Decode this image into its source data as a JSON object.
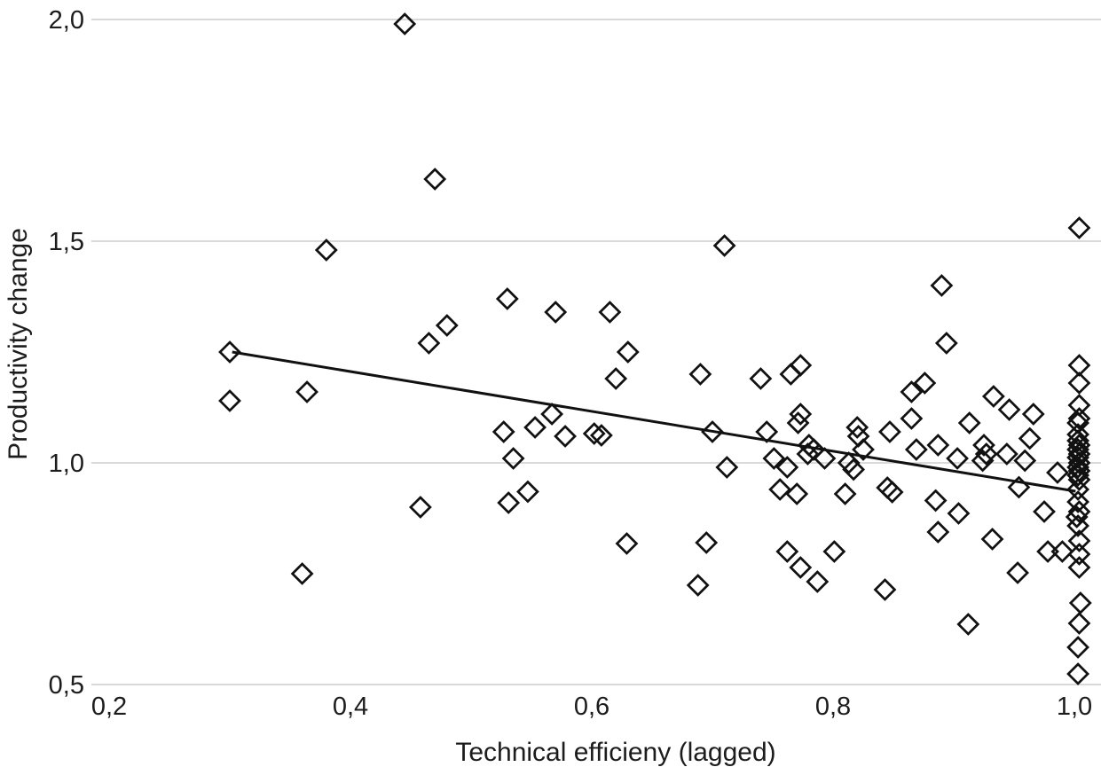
{
  "chart_data": {
    "type": "scatter",
    "title": "",
    "xlabel": "Technical efficieny (lagged)",
    "ylabel": "Productivity change",
    "xlim": [
      0.2,
      1.0
    ],
    "ylim": [
      0.5,
      2.0
    ],
    "grid": "horizontal-only",
    "legend_position": "none",
    "marker_style": "open-diamond",
    "decimal_separator": "comma",
    "x_ticks": [
      {
        "label": "0,2",
        "value": 0.2
      },
      {
        "label": "0,4",
        "value": 0.4
      },
      {
        "label": "0,6",
        "value": 0.6
      },
      {
        "label": "0,8",
        "value": 0.8
      },
      {
        "label": "1,0",
        "value": 1.0
      }
    ],
    "y_ticks": [
      {
        "label": "2,0",
        "value": 2.0
      },
      {
        "label": "1,5",
        "value": 1.5
      },
      {
        "label": "1,0",
        "value": 1.0
      },
      {
        "label": "0,5",
        "value": 0.5
      }
    ],
    "trend_line": {
      "x1": 0.302,
      "y1": 1.25,
      "x2": 1.001,
      "y2": 0.936
    },
    "points": [
      [
        0.445,
        1.99
      ],
      [
        0.47,
        1.64
      ],
      [
        0.71,
        1.49
      ],
      [
        0.38,
        1.48
      ],
      [
        0.3,
        1.25
      ],
      [
        0.364,
        1.16
      ],
      [
        0.3,
        1.14
      ],
      [
        0.36,
        0.75
      ],
      [
        0.53,
        1.37
      ],
      [
        0.57,
        1.34
      ],
      [
        0.615,
        1.34
      ],
      [
        0.48,
        1.31
      ],
      [
        0.465,
        1.27
      ],
      [
        0.63,
        1.25
      ],
      [
        0.62,
        1.19
      ],
      [
        0.69,
        1.2
      ],
      [
        0.74,
        1.19
      ],
      [
        0.765,
        1.2
      ],
      [
        0.773,
        1.22
      ],
      [
        0.567,
        1.11
      ],
      [
        0.553,
        1.08
      ],
      [
        0.527,
        1.07
      ],
      [
        0.578,
        1.06
      ],
      [
        0.602,
        1.066
      ],
      [
        0.608,
        1.062
      ],
      [
        0.7,
        1.07
      ],
      [
        0.745,
        1.07
      ],
      [
        0.535,
        1.01
      ],
      [
        0.712,
        0.99
      ],
      [
        0.547,
        0.935
      ],
      [
        0.531,
        0.91
      ],
      [
        0.458,
        0.9
      ],
      [
        0.89,
        1.4
      ],
      [
        0.894,
        1.27
      ],
      [
        0.876,
        1.18
      ],
      [
        0.865,
        1.16
      ],
      [
        0.865,
        1.1
      ],
      [
        0.933,
        1.15
      ],
      [
        0.946,
        1.12
      ],
      [
        0.966,
        1.11
      ],
      [
        0.963,
        1.055
      ],
      [
        0.913,
        1.09
      ],
      [
        0.773,
        1.11
      ],
      [
        0.771,
        1.09
      ],
      [
        0.82,
        1.08
      ],
      [
        0.821,
        1.06
      ],
      [
        0.847,
        1.07
      ],
      [
        0.869,
        1.03
      ],
      [
        0.887,
        1.04
      ],
      [
        0.78,
        1.04
      ],
      [
        0.784,
        1.03
      ],
      [
        0.779,
        1.02
      ],
      [
        0.793,
        1.01
      ],
      [
        0.751,
        1.01
      ],
      [
        0.762,
        0.99
      ],
      [
        0.813,
        1.0
      ],
      [
        0.817,
        0.985
      ],
      [
        0.825,
        1.03
      ],
      [
        0.925,
        1.04
      ],
      [
        0.927,
        1.02
      ],
      [
        0.924,
        1.005
      ],
      [
        0.944,
        1.02
      ],
      [
        0.903,
        1.01
      ],
      [
        0.959,
        1.005
      ],
      [
        0.986,
        0.978
      ],
      [
        0.954,
        0.945
      ],
      [
        0.756,
        0.94
      ],
      [
        0.77,
        0.93
      ],
      [
        0.81,
        0.93
      ],
      [
        0.845,
        0.944
      ],
      [
        0.849,
        0.934
      ],
      [
        0.885,
        0.915
      ],
      [
        0.904,
        0.886
      ],
      [
        0.975,
        0.89
      ],
      [
        0.762,
        0.8
      ],
      [
        0.773,
        0.764
      ],
      [
        0.787,
        0.732
      ],
      [
        0.801,
        0.8
      ],
      [
        0.843,
        0.714
      ],
      [
        0.887,
        0.844
      ],
      [
        0.932,
        0.828
      ],
      [
        0.953,
        0.752
      ],
      [
        0.912,
        0.636
      ],
      [
        0.629,
        0.818
      ],
      [
        0.695,
        0.82
      ],
      [
        0.688,
        0.724
      ],
      [
        0.978,
        0.8
      ],
      [
        0.99,
        0.8
      ],
      [
        1.004,
        1.53
      ],
      [
        1.004,
        1.22
      ],
      [
        1.004,
        1.18
      ],
      [
        1.004,
        1.13
      ],
      [
        1.004,
        1.1
      ],
      [
        1.003,
        1.09
      ],
      [
        1.003,
        1.064
      ],
      [
        1.003,
        1.05
      ],
      [
        1.004,
        1.04
      ],
      [
        1.003,
        1.03
      ],
      [
        1.004,
        1.02
      ],
      [
        1.003,
        1.012
      ],
      [
        1.004,
        1.0
      ],
      [
        1.003,
        0.99
      ],
      [
        1.004,
        0.982
      ],
      [
        1.003,
        0.972
      ],
      [
        1.004,
        0.962
      ],
      [
        1.003,
        0.94
      ],
      [
        1.003,
        0.912
      ],
      [
        1.004,
        0.89
      ],
      [
        1.002,
        0.878
      ],
      [
        1.003,
        0.858
      ],
      [
        1.004,
        0.824
      ],
      [
        1.004,
        0.794
      ],
      [
        1.004,
        0.764
      ],
      [
        1.005,
        0.684
      ],
      [
        1.004,
        0.638
      ],
      [
        1.003,
        0.584
      ],
      [
        1.003,
        0.524
      ]
    ],
    "colors": {
      "marker": "#111111",
      "trend": "#111111",
      "grid": "#d9d9d9",
      "text": "#1c1c1c",
      "background": "#ffffff"
    }
  }
}
